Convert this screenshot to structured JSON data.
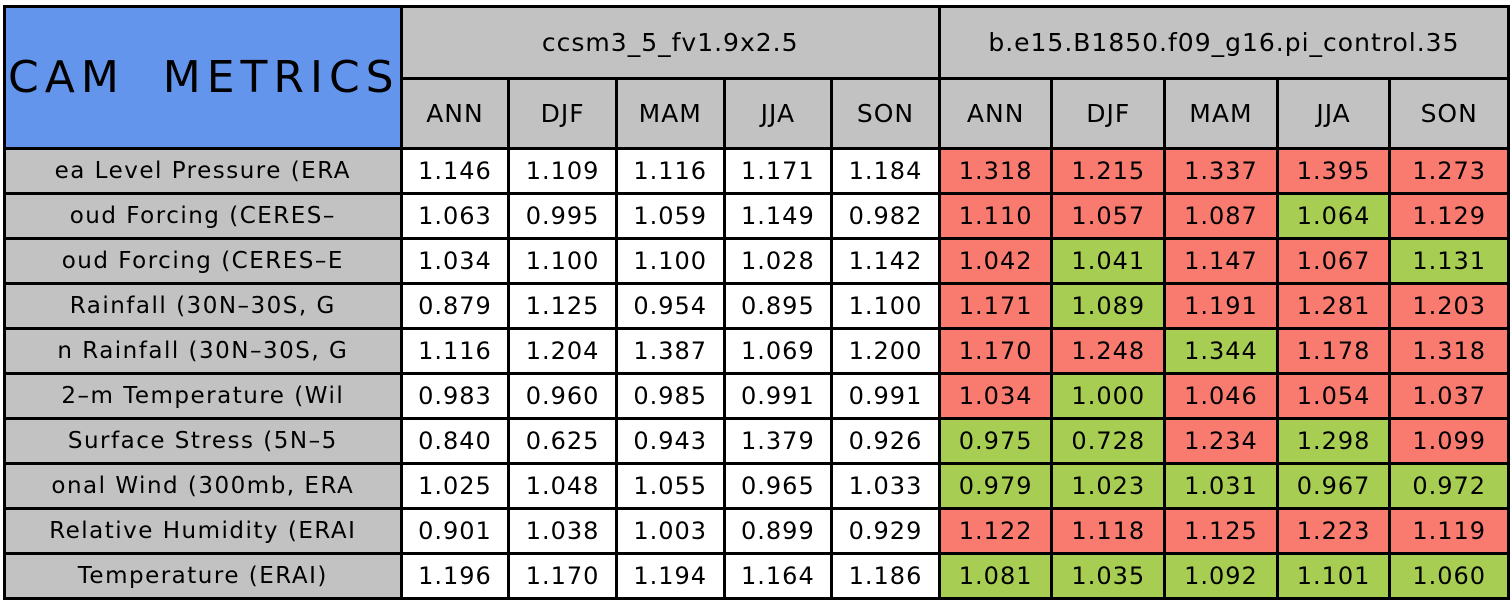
{
  "styles": {
    "corner_blue": "#6495ed",
    "header_gray": "#c2c2c2",
    "cell_red": "#f97a6e",
    "cell_green": "#a7ce52",
    "cell_white": "#ffffff",
    "border_black": "#000000"
  },
  "chart_data": {
    "type": "table",
    "title": "CAM METRICS",
    "column_groups": [
      "ccsm3_5_fv1.9x2.5",
      "b.e15.B1850.f09_g16.pi_control.35"
    ],
    "seasons": [
      "ANN",
      "DJF",
      "MAM",
      "JJA",
      "SON"
    ],
    "rows": [
      {
        "label": "ea Level Pressure (ERA",
        "values": [
          "1.146",
          "1.109",
          "1.116",
          "1.171",
          "1.184",
          "1.318",
          "1.215",
          "1.337",
          "1.395",
          "1.273"
        ],
        "cell_colors": [
          "white",
          "white",
          "white",
          "white",
          "white",
          "red",
          "red",
          "red",
          "red",
          "red"
        ]
      },
      {
        "label": "oud Forcing (CERES–",
        "values": [
          "1.063",
          "0.995",
          "1.059",
          "1.149",
          "0.982",
          "1.110",
          "1.057",
          "1.087",
          "1.064",
          "1.129"
        ],
        "cell_colors": [
          "white",
          "white",
          "white",
          "white",
          "white",
          "red",
          "red",
          "red",
          "green",
          "red"
        ]
      },
      {
        "label": "oud Forcing (CERES–E",
        "values": [
          "1.034",
          "1.100",
          "1.100",
          "1.028",
          "1.142",
          "1.042",
          "1.041",
          "1.147",
          "1.067",
          "1.131"
        ],
        "cell_colors": [
          "white",
          "white",
          "white",
          "white",
          "white",
          "red",
          "green",
          "red",
          "red",
          "green"
        ]
      },
      {
        "label": "Rainfall (30N–30S, G",
        "values": [
          "0.879",
          "1.125",
          "0.954",
          "0.895",
          "1.100",
          "1.171",
          "1.089",
          "1.191",
          "1.281",
          "1.203"
        ],
        "cell_colors": [
          "white",
          "white",
          "white",
          "white",
          "white",
          "red",
          "green",
          "red",
          "red",
          "red"
        ]
      },
      {
        "label": "n Rainfall (30N–30S, G",
        "values": [
          "1.116",
          "1.204",
          "1.387",
          "1.069",
          "1.200",
          "1.170",
          "1.248",
          "1.344",
          "1.178",
          "1.318"
        ],
        "cell_colors": [
          "white",
          "white",
          "white",
          "white",
          "white",
          "red",
          "red",
          "green",
          "red",
          "red"
        ]
      },
      {
        "label": "2–m Temperature (Wil",
        "values": [
          "0.983",
          "0.960",
          "0.985",
          "0.991",
          "0.991",
          "1.034",
          "1.000",
          "1.046",
          "1.054",
          "1.037"
        ],
        "cell_colors": [
          "white",
          "white",
          "white",
          "white",
          "white",
          "red",
          "green",
          "red",
          "red",
          "red"
        ]
      },
      {
        "label": "Surface Stress (5N–5",
        "values": [
          "0.840",
          "0.625",
          "0.943",
          "1.379",
          "0.926",
          "0.975",
          "0.728",
          "1.234",
          "1.298",
          "1.099"
        ],
        "cell_colors": [
          "white",
          "white",
          "white",
          "white",
          "white",
          "green",
          "green",
          "red",
          "green",
          "red"
        ]
      },
      {
        "label": "onal Wind (300mb, ERA",
        "values": [
          "1.025",
          "1.048",
          "1.055",
          "0.965",
          "1.033",
          "0.979",
          "1.023",
          "1.031",
          "0.967",
          "0.972"
        ],
        "cell_colors": [
          "white",
          "white",
          "white",
          "white",
          "white",
          "green",
          "green",
          "green",
          "green",
          "green"
        ]
      },
      {
        "label": "Relative Humidity (ERAI",
        "values": [
          "0.901",
          "1.038",
          "1.003",
          "0.899",
          "0.929",
          "1.122",
          "1.118",
          "1.125",
          "1.223",
          "1.119"
        ],
        "cell_colors": [
          "white",
          "white",
          "white",
          "white",
          "white",
          "red",
          "red",
          "red",
          "red",
          "red"
        ]
      },
      {
        "label": "Temperature (ERAI)",
        "values": [
          "1.196",
          "1.170",
          "1.194",
          "1.164",
          "1.186",
          "1.081",
          "1.035",
          "1.092",
          "1.101",
          "1.060"
        ],
        "cell_colors": [
          "white",
          "white",
          "white",
          "white",
          "white",
          "green",
          "green",
          "green",
          "green",
          "green"
        ]
      }
    ]
  }
}
